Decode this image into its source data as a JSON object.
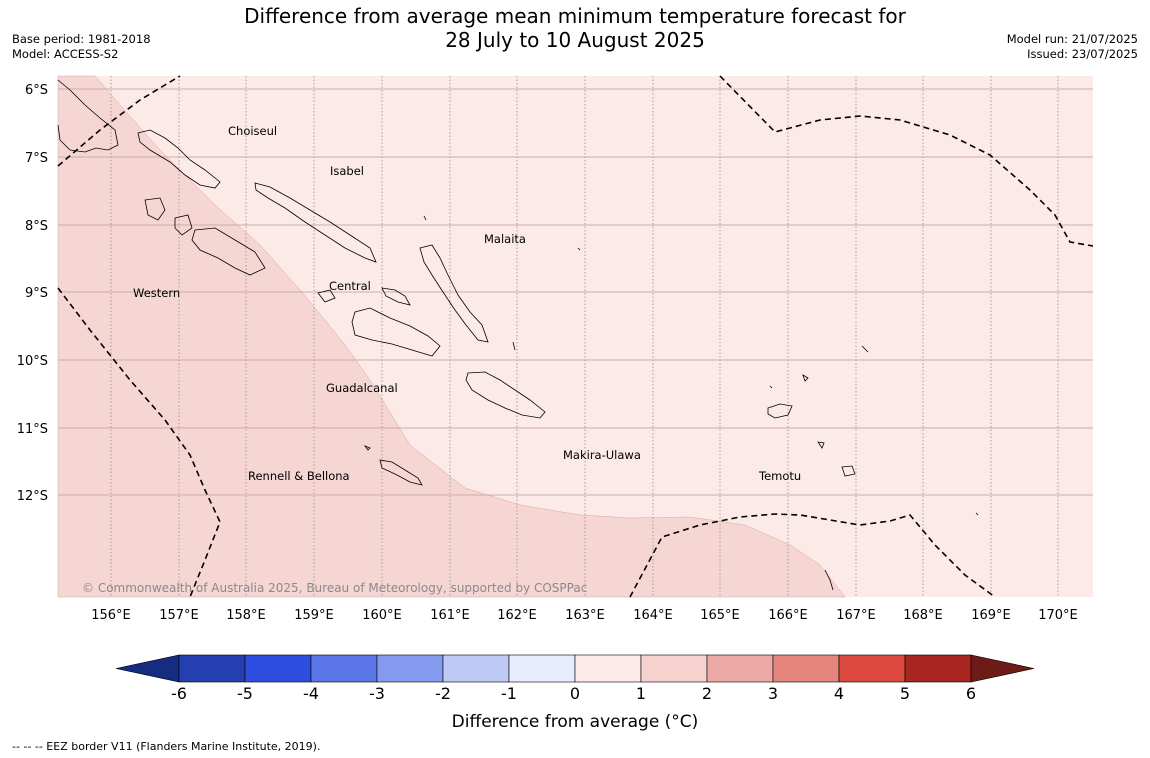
{
  "header": {
    "title_line1": "Difference from average mean minimum temperature forecast for",
    "title_line2": "28 July to 10 August 2025",
    "base_period": "Base period: 1981-2018",
    "model": "Model: ACCESS-S2",
    "model_run": "Model run: 21/07/2025",
    "issued": "Issued: 23/07/2025"
  },
  "map": {
    "lat_labels": [
      "6°S",
      "7°S",
      "8°S",
      "9°S",
      "10°S",
      "11°S",
      "12°S"
    ],
    "lon_labels": [
      "156°E",
      "157°E",
      "158°E",
      "159°E",
      "160°E",
      "161°E",
      "162°E",
      "163°E",
      "164°E",
      "165°E",
      "166°E",
      "167°E",
      "168°E",
      "169°E",
      "170°E"
    ],
    "regions": [
      "Choiseul",
      "Isabel",
      "Malaita",
      "Western",
      "Central",
      "Guadalcanal",
      "Makira-Ulawa",
      "Rennell & Bellona",
      "Temotu"
    ],
    "copyright": "© Commonwealth of Australia 2025, Bureau of Meteorology, supported by COSPPac",
    "fill_colors": {
      "band_0_1": "#fbeae8",
      "band_1_2": "#f6d6d3"
    }
  },
  "colorbar": {
    "ticks": [
      "-6",
      "-5",
      "-4",
      "-3",
      "-2",
      "-1",
      "0",
      "1",
      "2",
      "3",
      "4",
      "5",
      "6"
    ],
    "colors": [
      "#152c82",
      "#233fb0",
      "#2e4ee0",
      "#5a76e6",
      "#8599ee",
      "#bfc9f5",
      "#e8ecfc",
      "#fce9e8",
      "#f6d2cf",
      "#eca9a5",
      "#e4867e",
      "#dc483e",
      "#a82620",
      "#6e1a16"
    ],
    "title": "Difference from average (°C)"
  },
  "footnote": "--  --  -- EEZ border V11 (Flanders Marine Institute, 2019)."
}
